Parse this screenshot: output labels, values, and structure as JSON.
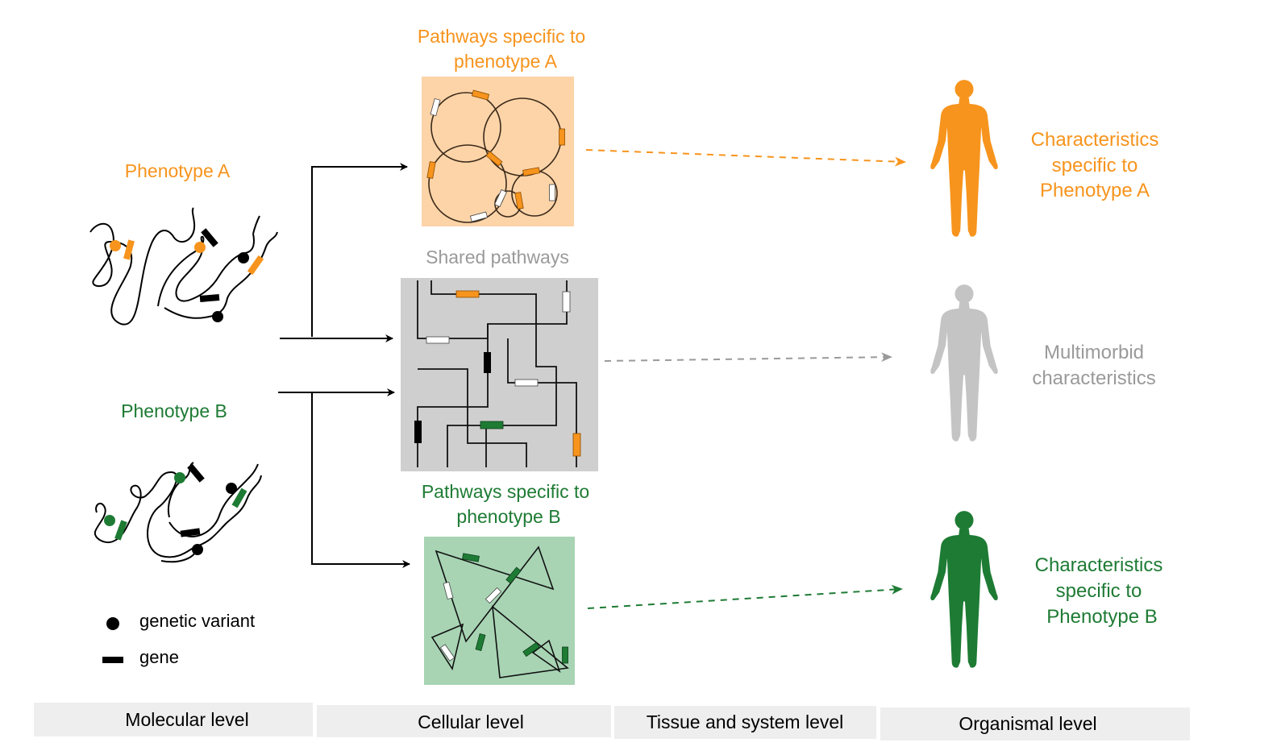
{
  "colors": {
    "orange": "#f7941d",
    "green": "#1e7b34",
    "gray": "#9a9a9a",
    "black": "#000000",
    "orange_panel": "#fdd4a8",
    "gray_panel": "#cfcfcf",
    "green_panel": "#a8d4b4",
    "level_bar": "#eeeeee"
  },
  "phenotypes": {
    "a": {
      "label": "Phenotype A"
    },
    "b": {
      "label": "Phenotype B"
    }
  },
  "legend": {
    "variant": "genetic variant",
    "gene": "gene"
  },
  "pathways": {
    "a_title_1": "Pathways specific to",
    "a_title_2": "phenotype A",
    "shared_title": "Shared pathways",
    "b_title_1": "Pathways specific to",
    "b_title_2": "phenotype B"
  },
  "characteristics": {
    "a": [
      "Characteristics",
      "specific to",
      "Phenotype A"
    ],
    "shared": [
      "Multimorbid",
      "characteristics"
    ],
    "b": [
      "Characteristics",
      "specific to",
      "Phenotype B"
    ]
  },
  "levels": [
    "Molecular level",
    "Cellular level",
    "Tissue and system level",
    "Organismal level"
  ],
  "icons": {
    "person_a": "human-figure-icon",
    "person_shared": "human-figure-icon",
    "person_b": "human-figure-icon"
  }
}
